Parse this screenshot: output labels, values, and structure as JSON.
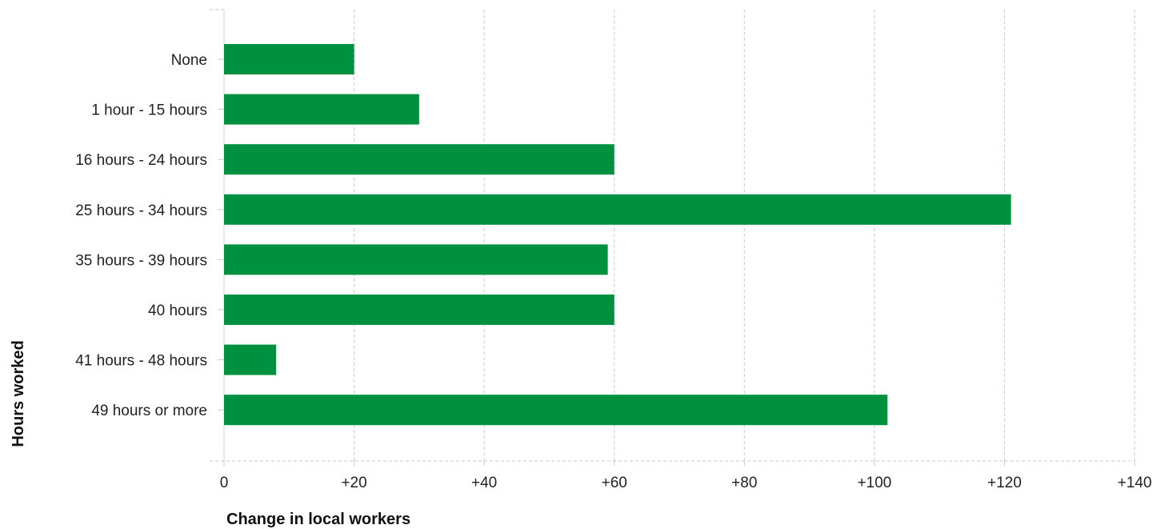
{
  "chart_data": {
    "type": "bar",
    "orientation": "horizontal",
    "title": "",
    "xlabel": "Change in local workers",
    "ylabel": "Hours worked",
    "categories": [
      "None",
      "1 hour - 15 hours",
      "16 hours - 24 hours",
      "25 hours - 34 hours",
      "35 hours - 39 hours",
      "40 hours",
      "41 hours - 48 hours",
      "49 hours or more"
    ],
    "values": [
      20,
      30,
      60,
      121,
      59,
      60,
      8,
      102
    ],
    "xlim": [
      0,
      140
    ],
    "xticks": [
      0,
      20,
      40,
      60,
      80,
      100,
      120,
      140
    ],
    "xtick_labels": [
      "0",
      "+20",
      "+40",
      "+60",
      "+80",
      "+100",
      "+120",
      "+140"
    ],
    "grid": "vertical dashed",
    "legend": "none",
    "bar_color": "#009140"
  }
}
